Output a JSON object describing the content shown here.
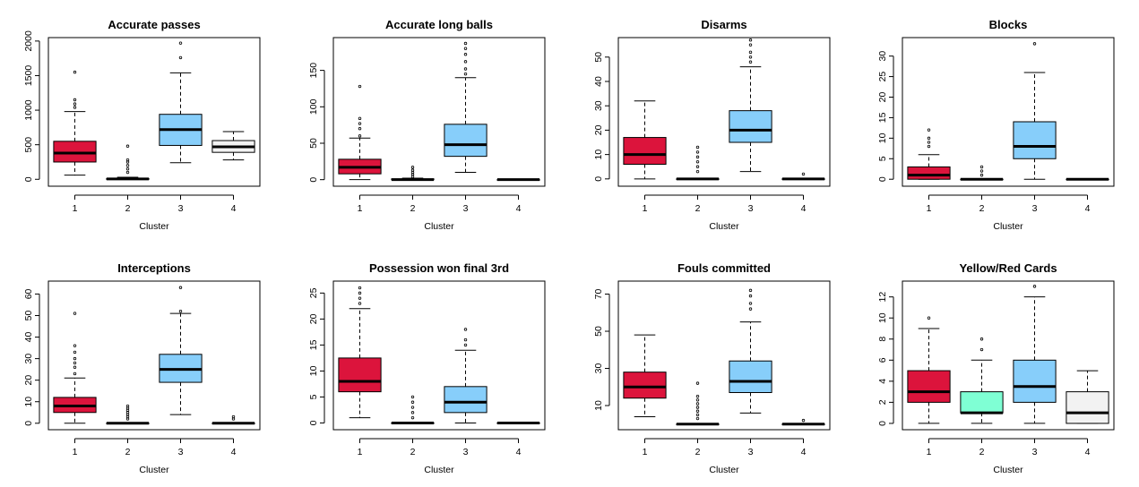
{
  "chart_data": [
    {
      "type": "boxplot",
      "title": "Accurate passes",
      "xlabel": "Cluster",
      "categories": [
        "1",
        "2",
        "3",
        "4"
      ],
      "yticks": [
        "0",
        "500",
        "1000",
        "1500",
        "2000"
      ],
      "ylim": [
        -100,
        2050
      ],
      "boxes": [
        {
          "cluster": "1",
          "min": 60,
          "q1": 250,
          "median": 380,
          "q3": 550,
          "max": 980,
          "outliers": [
            1040,
            1090,
            1150,
            1550
          ],
          "fill": "#DC143C"
        },
        {
          "cluster": "2",
          "min": 0,
          "q1": 0,
          "median": 5,
          "q3": 10,
          "max": 30,
          "outliers": [
            100,
            150,
            200,
            250,
            280,
            480
          ],
          "fill": "#7FFFD4"
        },
        {
          "cluster": "3",
          "min": 240,
          "q1": 490,
          "median": 720,
          "q3": 940,
          "max": 1540,
          "outliers": [
            1760,
            1970
          ],
          "fill": "#87CEFA"
        },
        {
          "cluster": "4",
          "min": 280,
          "q1": 390,
          "median": 470,
          "q3": 560,
          "max": 690,
          "outliers": [],
          "fill": "#F2F2F2"
        }
      ]
    },
    {
      "type": "boxplot",
      "title": "Accurate long balls",
      "xlabel": "Cluster",
      "categories": [
        "1",
        "2",
        "3",
        "4"
      ],
      "yticks": [
        "0",
        "50",
        "100",
        "150"
      ],
      "ylim": [
        -9,
        195
      ],
      "boxes": [
        {
          "cluster": "1",
          "min": 0,
          "q1": 8,
          "median": 17,
          "q3": 28,
          "max": 57,
          "outliers": [
            60,
            70,
            77,
            84,
            128
          ],
          "fill": "#DC143C"
        },
        {
          "cluster": "2",
          "min": 0,
          "q1": 0,
          "median": 0,
          "q3": 1,
          "max": 2,
          "outliers": [
            4,
            7,
            10,
            13,
            17
          ],
          "fill": "#7FFFD4"
        },
        {
          "cluster": "3",
          "min": 10,
          "q1": 32,
          "median": 48,
          "q3": 76,
          "max": 140,
          "outliers": [
            145,
            152,
            162,
            172,
            180,
            187
          ],
          "fill": "#87CEFA"
        },
        {
          "cluster": "4",
          "min": 0,
          "q1": 0,
          "median": 0,
          "q3": 0,
          "max": 0,
          "outliers": [],
          "fill": "#F2F2F2"
        }
      ]
    },
    {
      "type": "boxplot",
      "title": "Disarms",
      "xlabel": "Cluster",
      "categories": [
        "1",
        "2",
        "3",
        "4"
      ],
      "yticks": [
        "0",
        "10",
        "20",
        "30",
        "40",
        "50"
      ],
      "ylim": [
        -3,
        58
      ],
      "boxes": [
        {
          "cluster": "1",
          "min": 0,
          "q1": 6,
          "median": 10,
          "q3": 17,
          "max": 32,
          "outliers": [],
          "fill": "#DC143C"
        },
        {
          "cluster": "2",
          "min": 0,
          "q1": 0,
          "median": 0,
          "q3": 0,
          "max": 0,
          "outliers": [
            3,
            5,
            7,
            9,
            11,
            13
          ],
          "fill": "#7FFFD4"
        },
        {
          "cluster": "3",
          "min": 3,
          "q1": 15,
          "median": 20,
          "q3": 28,
          "max": 46,
          "outliers": [
            48,
            50,
            52,
            55,
            57
          ],
          "fill": "#87CEFA"
        },
        {
          "cluster": "4",
          "min": 0,
          "q1": 0,
          "median": 0,
          "q3": 0,
          "max": 0,
          "outliers": [
            2
          ],
          "fill": "#F2F2F2"
        }
      ]
    },
    {
      "type": "boxplot",
      "title": "Blocks",
      "xlabel": "Cluster",
      "categories": [
        "1",
        "2",
        "3",
        "4"
      ],
      "yticks": [
        "0",
        "5",
        "10",
        "15",
        "20",
        "25",
        "30"
      ],
      "ylim": [
        -1.7,
        34.5
      ],
      "boxes": [
        {
          "cluster": "1",
          "min": 0,
          "q1": 0,
          "median": 1,
          "q3": 3,
          "max": 6,
          "outliers": [
            8,
            9,
            10,
            12
          ],
          "fill": "#DC143C"
        },
        {
          "cluster": "2",
          "min": 0,
          "q1": 0,
          "median": 0,
          "q3": 0,
          "max": 0,
          "outliers": [
            1,
            2,
            3
          ],
          "fill": "#7FFFD4"
        },
        {
          "cluster": "3",
          "min": 0,
          "q1": 5,
          "median": 8,
          "q3": 14,
          "max": 26,
          "outliers": [
            33
          ],
          "fill": "#87CEFA"
        },
        {
          "cluster": "4",
          "min": 0,
          "q1": 0,
          "median": 0,
          "q3": 0,
          "max": 0,
          "outliers": [],
          "fill": "#F2F2F2"
        }
      ]
    },
    {
      "type": "boxplot",
      "title": "Interceptions",
      "xlabel": "Cluster",
      "categories": [
        "1",
        "2",
        "3",
        "4"
      ],
      "yticks": [
        "0",
        "10",
        "20",
        "30",
        "40",
        "50",
        "60"
      ],
      "ylim": [
        -3,
        66
      ],
      "boxes": [
        {
          "cluster": "1",
          "min": 0,
          "q1": 5,
          "median": 8,
          "q3": 12,
          "max": 21,
          "outliers": [
            23,
            26,
            28,
            30,
            33,
            36,
            51
          ],
          "fill": "#DC143C"
        },
        {
          "cluster": "2",
          "min": 0,
          "q1": 0,
          "median": 0,
          "q3": 0,
          "max": 0,
          "outliers": [
            2,
            3,
            4,
            5,
            6,
            7,
            8
          ],
          "fill": "#7FFFD4"
        },
        {
          "cluster": "3",
          "min": 4,
          "q1": 19,
          "median": 25,
          "q3": 32,
          "max": 51,
          "outliers": [
            52,
            63
          ],
          "fill": "#87CEFA"
        },
        {
          "cluster": "4",
          "min": 0,
          "q1": 0,
          "median": 0,
          "q3": 0,
          "max": 0,
          "outliers": [
            2,
            3
          ],
          "fill": "#F2F2F2"
        }
      ]
    },
    {
      "type": "boxplot",
      "title": "Possession won final 3rd",
      "xlabel": "Cluster",
      "categories": [
        "1",
        "2",
        "3",
        "4"
      ],
      "yticks": [
        "0",
        "5",
        "10",
        "15",
        "20",
        "25"
      ],
      "ylim": [
        -1.3,
        27.3
      ],
      "boxes": [
        {
          "cluster": "1",
          "min": 1,
          "q1": 6,
          "median": 8,
          "q3": 12.5,
          "max": 22,
          "outliers": [
            23,
            24,
            25,
            26
          ],
          "fill": "#DC143C"
        },
        {
          "cluster": "2",
          "min": 0,
          "q1": 0,
          "median": 0,
          "q3": 0,
          "max": 0,
          "outliers": [
            1,
            2,
            3,
            4,
            5
          ],
          "fill": "#7FFFD4"
        },
        {
          "cluster": "3",
          "min": 0,
          "q1": 2,
          "median": 4,
          "q3": 7,
          "max": 14,
          "outliers": [
            15,
            16,
            18
          ],
          "fill": "#87CEFA"
        },
        {
          "cluster": "4",
          "min": 0,
          "q1": 0,
          "median": 0,
          "q3": 0,
          "max": 0,
          "outliers": [],
          "fill": "#F2F2F2"
        }
      ]
    },
    {
      "type": "boxplot",
      "title": "Fouls committed",
      "xlabel": "Cluster",
      "categories": [
        "1",
        "2",
        "3",
        "4"
      ],
      "yticks": [
        "10",
        "30",
        "50",
        "70"
      ],
      "ylim": [
        -3,
        77
      ],
      "boxes": [
        {
          "cluster": "1",
          "min": 4,
          "q1": 14,
          "median": 20,
          "q3": 28,
          "max": 48,
          "outliers": [],
          "fill": "#DC143C"
        },
        {
          "cluster": "2",
          "min": 0,
          "q1": 0,
          "median": 0,
          "q3": 0,
          "max": 0,
          "outliers": [
            3,
            5,
            7,
            9,
            11,
            13,
            15,
            22
          ],
          "fill": "#7FFFD4"
        },
        {
          "cluster": "3",
          "min": 6,
          "q1": 17,
          "median": 23,
          "q3": 34,
          "max": 55,
          "outliers": [
            62,
            65,
            69,
            72
          ],
          "fill": "#87CEFA"
        },
        {
          "cluster": "4",
          "min": 0,
          "q1": 0,
          "median": 0,
          "q3": 0,
          "max": 0,
          "outliers": [
            2
          ],
          "fill": "#F2F2F2"
        }
      ]
    },
    {
      "type": "boxplot",
      "title": "Yellow/Red Cards",
      "xlabel": "Cluster",
      "categories": [
        "1",
        "2",
        "3",
        "4"
      ],
      "yticks": [
        "0",
        "2",
        "4",
        "6",
        "8",
        "10",
        "12"
      ],
      "ylim": [
        -0.6,
        13.5
      ],
      "boxes": [
        {
          "cluster": "1",
          "min": 0,
          "q1": 2,
          "median": 3,
          "q3": 5,
          "max": 9,
          "outliers": [
            10
          ],
          "fill": "#DC143C"
        },
        {
          "cluster": "2",
          "min": 0,
          "q1": 1,
          "median": 1,
          "q3": 3,
          "max": 6,
          "outliers": [
            7,
            8
          ],
          "fill": "#7FFFD4"
        },
        {
          "cluster": "3",
          "min": 0,
          "q1": 2,
          "median": 3.5,
          "q3": 6,
          "max": 12,
          "outliers": [
            13
          ],
          "fill": "#87CEFA"
        },
        {
          "cluster": "4",
          "min": 0,
          "q1": 0,
          "median": 1,
          "q3": 3,
          "max": 5,
          "outliers": [],
          "fill": "#F2F2F2"
        }
      ]
    }
  ]
}
